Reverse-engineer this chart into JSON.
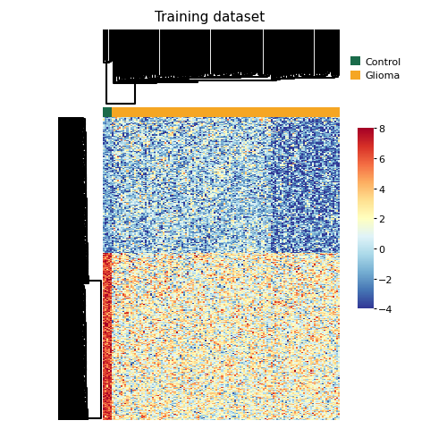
{
  "title": "Training dataset",
  "n_cols": 130,
  "n_rows": 300,
  "n_control": 5,
  "n_glioma": 125,
  "control_color": "#1a6b4a",
  "glioma_color": "#f5a623",
  "colormap": "RdYlBu_r",
  "vmin": -4,
  "vmax": 8,
  "colorbar_ticks": [
    -4,
    -2,
    0,
    2,
    4,
    6,
    8
  ],
  "legend_labels": [
    "Control",
    "Glioma"
  ],
  "legend_colors": [
    "#1a6b4a",
    "#f5a623"
  ],
  "background_color": "#ffffff",
  "title_fontsize": 11,
  "seed": 7
}
